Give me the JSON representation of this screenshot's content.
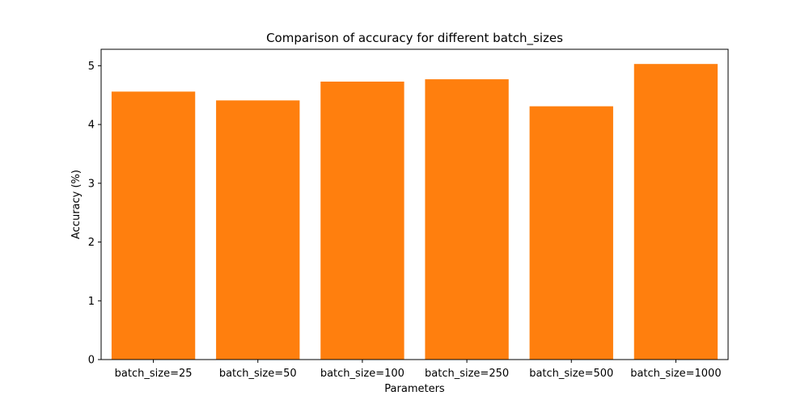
{
  "chart_data": {
    "type": "bar",
    "title": "Comparison of accuracy for different batch_sizes",
    "xlabel": "Parameters",
    "ylabel": "Accuracy (%)",
    "categories": [
      "batch_size=25",
      "batch_size=50",
      "batch_size=100",
      "batch_size=250",
      "batch_size=500",
      "batch_size=1000"
    ],
    "values": [
      4.56,
      4.41,
      4.73,
      4.77,
      4.31,
      5.03
    ],
    "ylim": [
      0,
      5.28
    ],
    "yticks": [
      0,
      1,
      2,
      3,
      4,
      5
    ],
    "grid": false,
    "bar_color": "#ff7f0e"
  }
}
